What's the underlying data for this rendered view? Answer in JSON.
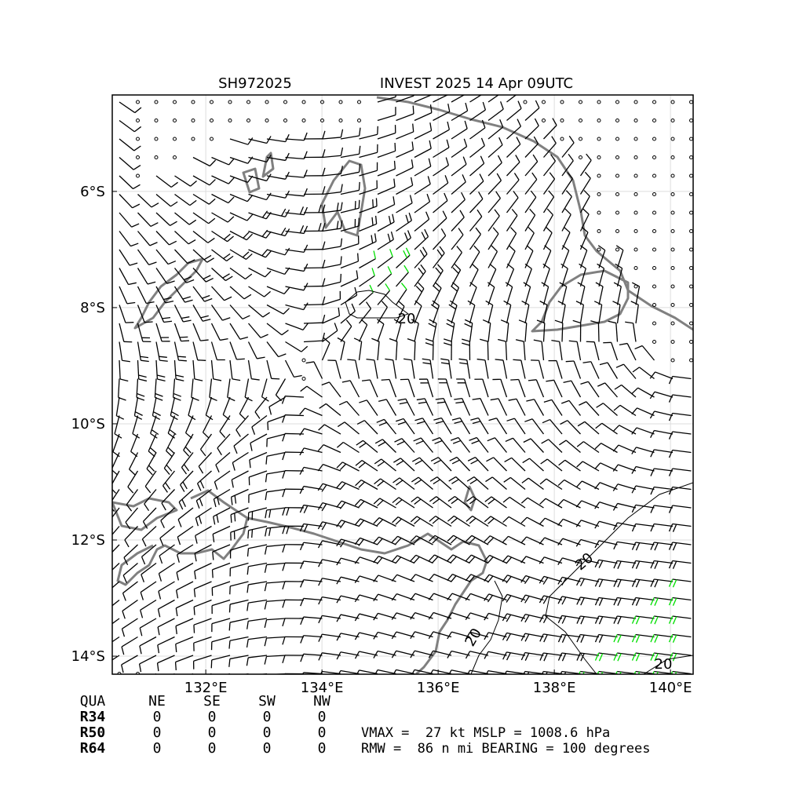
{
  "header": {
    "storm_id": "SH972025",
    "title": "INVEST 2025 14 Apr 09UTC"
  },
  "map": {
    "xlim": [
      130.39,
      140.39
    ],
    "ylim": [
      -14.31,
      -4.34
    ],
    "xticks": [
      {
        "value": 132,
        "label": "132°E"
      },
      {
        "value": 134,
        "label": "134°E"
      },
      {
        "value": 136,
        "label": "136°E"
      },
      {
        "value": 138,
        "label": "138°E"
      },
      {
        "value": 140,
        "label": "140°E"
      }
    ],
    "yticks": [
      {
        "value": -6,
        "label": "6°S"
      },
      {
        "value": -8,
        "label": "8°S"
      },
      {
        "value": -10,
        "label": "10°S"
      },
      {
        "value": -12,
        "label": "12°S"
      },
      {
        "value": -14,
        "label": "14°S"
      }
    ],
    "contour_level": 20,
    "grid": true
  },
  "table": {
    "header": [
      "QUA",
      "NE",
      "SE",
      "SW",
      "NW"
    ],
    "rows": [
      [
        "R34",
        "0",
        "0",
        "0",
        "0"
      ],
      [
        "R50",
        "0",
        "0",
        "0",
        "0"
      ],
      [
        "R64",
        "0",
        "0",
        "0",
        "0"
      ]
    ]
  },
  "info": [
    "VMAX =  27 kt MSLP = 1008.6 hPa",
    "RMW =  86 n mi BEARING = 100 degrees"
  ]
}
